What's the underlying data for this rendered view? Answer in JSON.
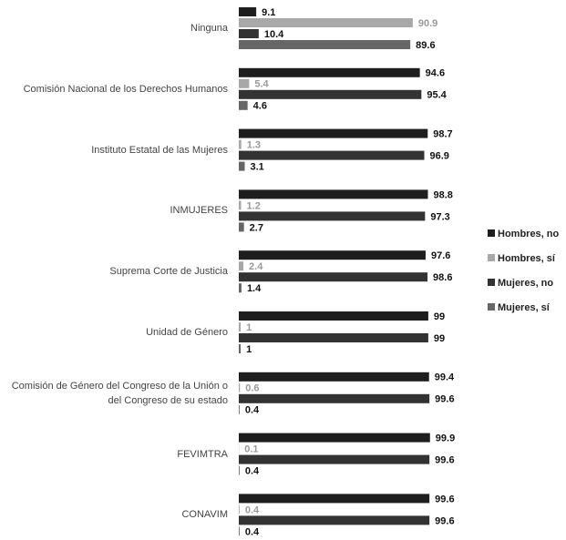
{
  "chart_data": {
    "type": "bar",
    "orientation": "horizontal",
    "categories": [
      "Ninguna",
      "Comisión Nacional de los Derechos Humanos",
      "Instituto Estatal de las Mujeres",
      "INMUJERES",
      "Suprema Corte de Justicia",
      "Unidad de Género",
      "Comisión de Género del Congreso de la Unión o del Congreso de su estado",
      "FEVIMTRA",
      "CONAVIM"
    ],
    "series": [
      {
        "name": "Hombres, no",
        "color": "#1e1e1e",
        "values": [
          9.1,
          94.6,
          98.7,
          98.8,
          97.6,
          99,
          99.4,
          99.9,
          99.6
        ]
      },
      {
        "name": "Hombres, sí",
        "color": "#a8a8a8",
        "values": [
          90.9,
          5.4,
          1.3,
          1.2,
          2.4,
          1,
          0.6,
          0.1,
          0.4
        ]
      },
      {
        "name": "Mujeres, no",
        "color": "#333333",
        "values": [
          10.4,
          95.4,
          96.9,
          97.3,
          98.6,
          99,
          99.6,
          99.6,
          99.6
        ]
      },
      {
        "name": "Mujeres, sí",
        "color": "#666666",
        "values": [
          89.6,
          4.6,
          3.1,
          2.7,
          1.4,
          1,
          0.4,
          0.4,
          0.4
        ]
      }
    ],
    "xlim": [
      0,
      100
    ],
    "legend": "right"
  }
}
